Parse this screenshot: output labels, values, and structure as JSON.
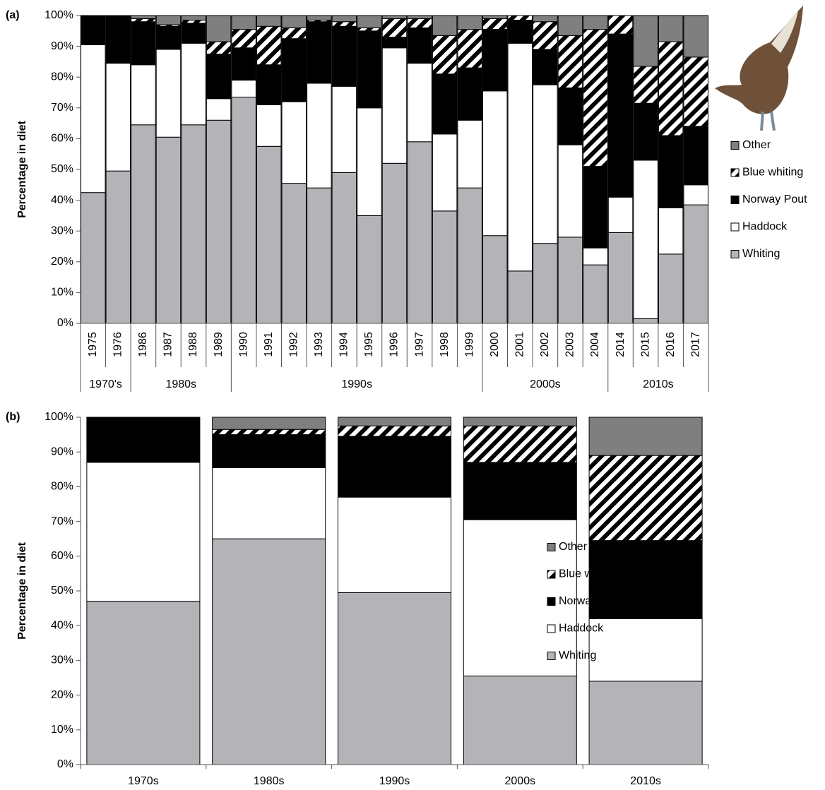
{
  "chart_data": [
    {
      "type": "stacked-bar",
      "panel_label": "(a)",
      "y_label": "Percentage in diet",
      "categories": [
        "1975",
        "1976",
        "1986",
        "1987",
        "1988",
        "1989",
        "1990",
        "1991",
        "1992",
        "1993",
        "1994",
        "1995",
        "1996",
        "1997",
        "1998",
        "1999",
        "2000",
        "2001",
        "2002",
        "2003",
        "2004",
        "2014",
        "2015",
        "2016",
        "2017"
      ],
      "groups": [
        {
          "label": "1970's",
          "span": 2
        },
        {
          "label": "1980s",
          "span": 4
        },
        {
          "label": "1990s",
          "span": 10
        },
        {
          "label": "2000s",
          "span": 5
        },
        {
          "label": "2010s",
          "span": 4
        }
      ],
      "series": [
        {
          "name": "Whiting",
          "color": "#b4b4b8",
          "values": [
            42.5,
            49.5,
            64.5,
            60.5,
            64.5,
            66,
            73.5,
            57.5,
            45.5,
            44,
            49,
            35,
            52,
            59,
            36.5,
            44,
            28.5,
            17,
            26,
            28,
            19,
            29.5,
            1.5,
            22.5,
            38.5
          ]
        },
        {
          "name": "Haddock",
          "color": "#ffffff",
          "values": [
            48,
            35,
            19.5,
            28.5,
            26.5,
            7,
            5.5,
            13.5,
            26.5,
            34,
            28,
            35,
            37.5,
            25.5,
            25,
            22,
            47,
            74,
            51.5,
            30,
            5.5,
            11.5,
            51.5,
            15,
            6.5
          ]
        },
        {
          "name": "Norway Pout",
          "color": "#000000",
          "values": [
            9.5,
            15.5,
            14,
            7.5,
            6.5,
            14.5,
            10.5,
            13,
            20.5,
            20,
            19.5,
            25,
            3.5,
            11.5,
            19.5,
            17,
            20,
            7.5,
            11.5,
            18.5,
            26.5,
            53,
            18.5,
            23.5,
            19
          ]
        },
        {
          "name": "Blue whiting",
          "color": "#000000",
          "pattern": "diagonal-stripes",
          "values": [
            0,
            0,
            1,
            0.5,
            1,
            4,
            6,
            12.5,
            3.5,
            0.5,
            1.5,
            1,
            6,
            3,
            12.5,
            12.5,
            3.5,
            1.5,
            9,
            17,
            44.5,
            6,
            12,
            30.5,
            22.5
          ]
        },
        {
          "name": "Other",
          "color": "#7f7f7f",
          "values": [
            0,
            0,
            1,
            3,
            1.5,
            8.5,
            4.5,
            3.5,
            4,
            1.5,
            2,
            4,
            1,
            1,
            6.5,
            4.5,
            1,
            0,
            2,
            6.5,
            4.5,
            0,
            16.5,
            8.5,
            13.5
          ]
        }
      ],
      "ylim": [
        0,
        100
      ],
      "yticks": [
        {
          "value": 0,
          "label": "0%"
        },
        {
          "value": 10,
          "label": "10%"
        },
        {
          "value": 20,
          "label": "20%"
        },
        {
          "value": 30,
          "label": "30%"
        },
        {
          "value": 40,
          "label": "40%"
        },
        {
          "value": 50,
          "label": "50%"
        },
        {
          "value": 60,
          "label": "60%"
        },
        {
          "value": 70,
          "label": "70%"
        },
        {
          "value": 80,
          "label": "80%"
        },
        {
          "value": 90,
          "label": "90%"
        },
        {
          "value": 100,
          "label": "100%"
        }
      ],
      "legend": "right"
    },
    {
      "type": "stacked-bar",
      "panel_label": "(b)",
      "y_label": "Percentage in diet",
      "categories": [
        "1970s",
        "1980s",
        "1990s",
        "2000s",
        "2010s"
      ],
      "series": [
        {
          "name": "Whiting",
          "color": "#b4b4b8",
          "values": [
            47,
            65,
            49.5,
            25.5,
            24
          ]
        },
        {
          "name": "Haddock",
          "color": "#ffffff",
          "values": [
            40,
            20.5,
            27.5,
            45,
            18
          ]
        },
        {
          "name": "Norway Pout",
          "color": "#000000",
          "values": [
            13,
            9.5,
            17.5,
            16.5,
            22.5
          ]
        },
        {
          "name": "Blue whiting",
          "color": "#000000",
          "pattern": "diagonal-stripes",
          "values": [
            0,
            1.5,
            3,
            10.5,
            24.5
          ]
        },
        {
          "name": "Other",
          "color": "#7f7f7f",
          "values": [
            0,
            3.5,
            2.5,
            2.5,
            11
          ]
        }
      ],
      "ylim": [
        0,
        100
      ],
      "yticks": [
        {
          "value": 0,
          "label": "0%"
        },
        {
          "value": 10,
          "label": "10%"
        },
        {
          "value": 20,
          "label": "20%"
        },
        {
          "value": 30,
          "label": "30%"
        },
        {
          "value": 40,
          "label": "40%"
        },
        {
          "value": 50,
          "label": "50%"
        },
        {
          "value": 60,
          "label": "60%"
        },
        {
          "value": 70,
          "label": "70%"
        },
        {
          "value": 80,
          "label": "80%"
        },
        {
          "value": 90,
          "label": "90%"
        },
        {
          "value": 100,
          "label": "100%"
        }
      ],
      "legend": "right"
    }
  ]
}
